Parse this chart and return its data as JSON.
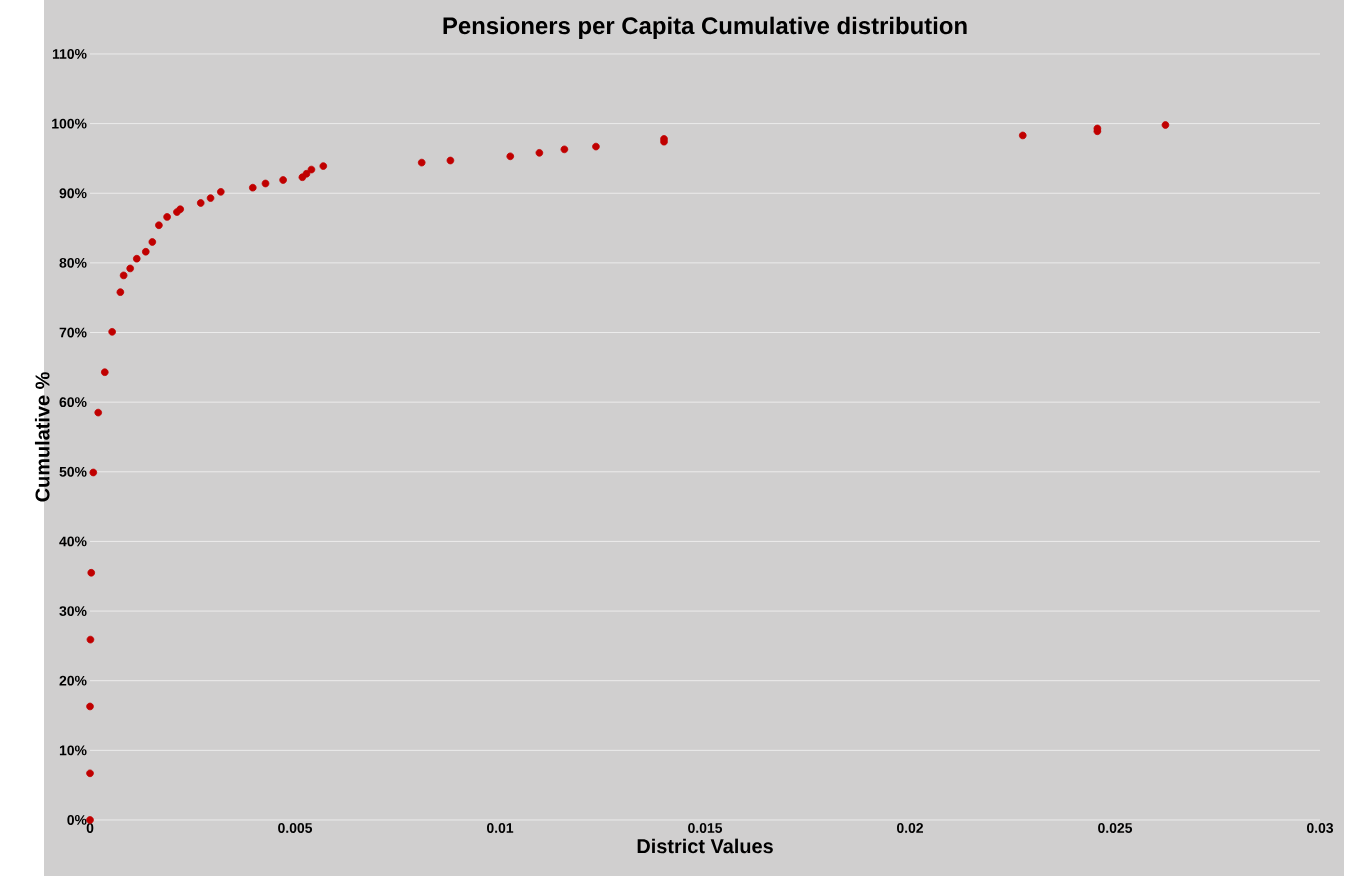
{
  "chart_data": {
    "type": "scatter",
    "title": "Pensioners per Capita Cumulative distribution",
    "xlabel": "District Values",
    "ylabel": "Cumulative %",
    "x": [
      0,
      0,
      0,
      1e-05,
      3e-05,
      8e-05,
      0.0002,
      0.00036,
      0.00054,
      0.00074,
      0.00082,
      0.00098,
      0.00114,
      0.00136,
      0.00152,
      0.00168,
      0.00188,
      0.00212,
      0.0022,
      0.0027,
      0.00294,
      0.00319,
      0.00397,
      0.00428,
      0.00471,
      0.00518,
      0.00528,
      0.0054,
      0.00569,
      0.00809,
      0.00879,
      0.01025,
      0.01096,
      0.01157,
      0.01234,
      0.014,
      0.014,
      0.02275,
      0.02457,
      0.02457,
      0.02623
    ],
    "series": [
      {
        "color": "#c00000",
        "values": [
          0,
          6.7,
          16.3,
          25.9,
          35.5,
          49.9,
          58.5,
          64.3,
          70.1,
          75.8,
          78.2,
          79.2,
          80.6,
          81.6,
          83.0,
          85.4,
          86.6,
          87.3,
          87.7,
          88.6,
          89.3,
          90.2,
          90.8,
          91.4,
          91.9,
          92.3,
          92.8,
          93.4,
          93.9,
          94.4,
          94.7,
          95.3,
          95.8,
          96.3,
          96.7,
          97.4,
          97.8,
          98.3,
          98.9,
          99.3,
          99.8
        ]
      }
    ],
    "xlim": [
      0,
      0.03
    ],
    "xticks": [
      0,
      0.005,
      0.01,
      0.015,
      0.02,
      0.025,
      0.03
    ],
    "ylim": [
      0,
      110
    ],
    "yticks": [
      {
        "value": 0,
        "label": "0%"
      },
      {
        "value": 10,
        "label": "10%"
      },
      {
        "value": 20,
        "label": "20%"
      },
      {
        "value": 30,
        "label": "30%"
      },
      {
        "value": 40,
        "label": "40%"
      },
      {
        "value": 50,
        "label": "50%"
      },
      {
        "value": 60,
        "label": "60%"
      },
      {
        "value": 70,
        "label": "70%"
      },
      {
        "value": 80,
        "label": "80%"
      },
      {
        "value": 90,
        "label": "90%"
      },
      {
        "value": 100,
        "label": "100%"
      },
      {
        "value": 110,
        "label": "110%"
      }
    ],
    "grid": "y",
    "marker": "circle"
  }
}
